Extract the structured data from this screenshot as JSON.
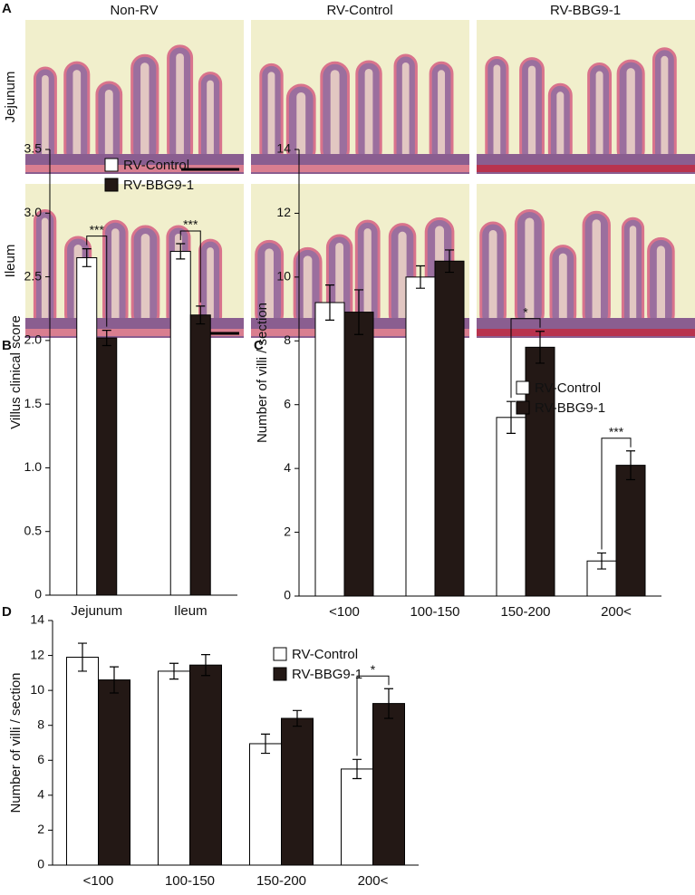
{
  "panel_labels": [
    "A",
    "B",
    "C",
    "D"
  ],
  "histology": {
    "columns": [
      "Non-RV",
      "RV-Control",
      "RV-BBG9-1"
    ],
    "rows": [
      "Jejunum",
      "Ileum"
    ]
  },
  "chart_data": [
    {
      "type": "bar",
      "ylabel": "Villus clinical score",
      "categories": [
        "Jejunum",
        "Ileum"
      ],
      "series": [
        {
          "name": "RV-Control",
          "color": "#ffffff",
          "values": [
            2.65,
            2.7
          ],
          "errors": [
            0.07,
            0.06
          ]
        },
        {
          "name": "RV-BBG9-1",
          "color": "#231815",
          "values": [
            2.02,
            2.2
          ],
          "errors": [
            0.06,
            0.07
          ]
        }
      ],
      "annotations": [
        "***",
        "***"
      ],
      "ylim": [
        0,
        3.5
      ],
      "yticks": [
        0,
        0.5,
        {
          "value": 1,
          "label": "1.0"
        },
        1.5,
        {
          "value": 2,
          "label": "2.0"
        },
        2.5,
        {
          "value": 3,
          "label": "3.0"
        },
        3.5
      ]
    },
    {
      "type": "bar",
      "ylabel": "Number of villi / section",
      "categories": [
        "<100",
        "100-150",
        "150-200",
        "200<"
      ],
      "series": [
        {
          "name": "RV-Control",
          "color": "#ffffff",
          "values": [
            9.2,
            10.0,
            5.6,
            1.1
          ],
          "errors": [
            0.55,
            0.35,
            0.5,
            0.25
          ]
        },
        {
          "name": "RV-BBG9-1",
          "color": "#231815",
          "values": [
            8.9,
            10.5,
            7.8,
            4.1
          ],
          "errors": [
            0.7,
            0.35,
            0.5,
            0.45
          ]
        }
      ],
      "annotations": [
        null,
        null,
        "*",
        "***"
      ],
      "ylim": [
        0,
        14
      ],
      "yticks": [
        0,
        2,
        4,
        6,
        8,
        10,
        12,
        14
      ]
    },
    {
      "type": "bar",
      "ylabel": "Number of villi / section",
      "categories": [
        "<100",
        "100-150",
        "150-200",
        "200<"
      ],
      "series": [
        {
          "name": "RV-Control",
          "color": "#ffffff",
          "values": [
            11.9,
            11.1,
            6.95,
            5.5
          ],
          "errors": [
            0.8,
            0.45,
            0.55,
            0.55
          ]
        },
        {
          "name": "RV-BBG9-1",
          "color": "#231815",
          "values": [
            10.6,
            11.45,
            8.4,
            9.25
          ],
          "errors": [
            0.75,
            0.6,
            0.45,
            0.85
          ]
        }
      ],
      "annotations": [
        null,
        null,
        null,
        "*"
      ],
      "ylim": [
        0,
        14
      ],
      "yticks": [
        0,
        2,
        4,
        6,
        8,
        10,
        12,
        14
      ]
    }
  ]
}
